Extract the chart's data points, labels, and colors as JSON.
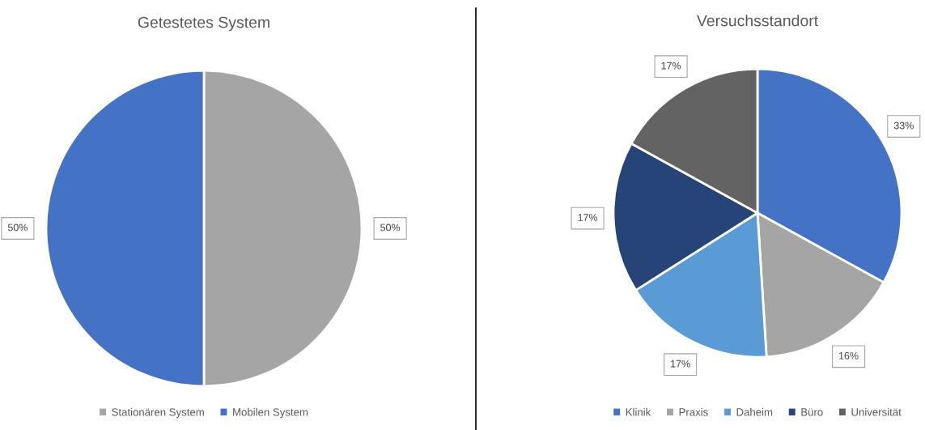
{
  "chart_data": [
    {
      "type": "pie",
      "title": "Getestetes System",
      "categories": [
        "Stationären System",
        "Mobilen System"
      ],
      "values": [
        50,
        50
      ],
      "colors": [
        "#a5a5a5",
        "#4472c4"
      ],
      "value_labels": [
        "50%",
        "50%"
      ],
      "legend": "bottom"
    },
    {
      "type": "pie",
      "title": "Versuchsstandort",
      "categories": [
        "Klinik",
        "Praxis",
        "Daheim",
        "Büro",
        "Universität"
      ],
      "values": [
        33,
        16,
        17,
        17,
        17
      ],
      "colors": [
        "#4472c4",
        "#a5a5a5",
        "#5b9bd5",
        "#264478",
        "#636363"
      ],
      "value_labels": [
        "33%",
        "16%",
        "17%",
        "17%",
        "17%"
      ],
      "legend": "bottom"
    }
  ]
}
